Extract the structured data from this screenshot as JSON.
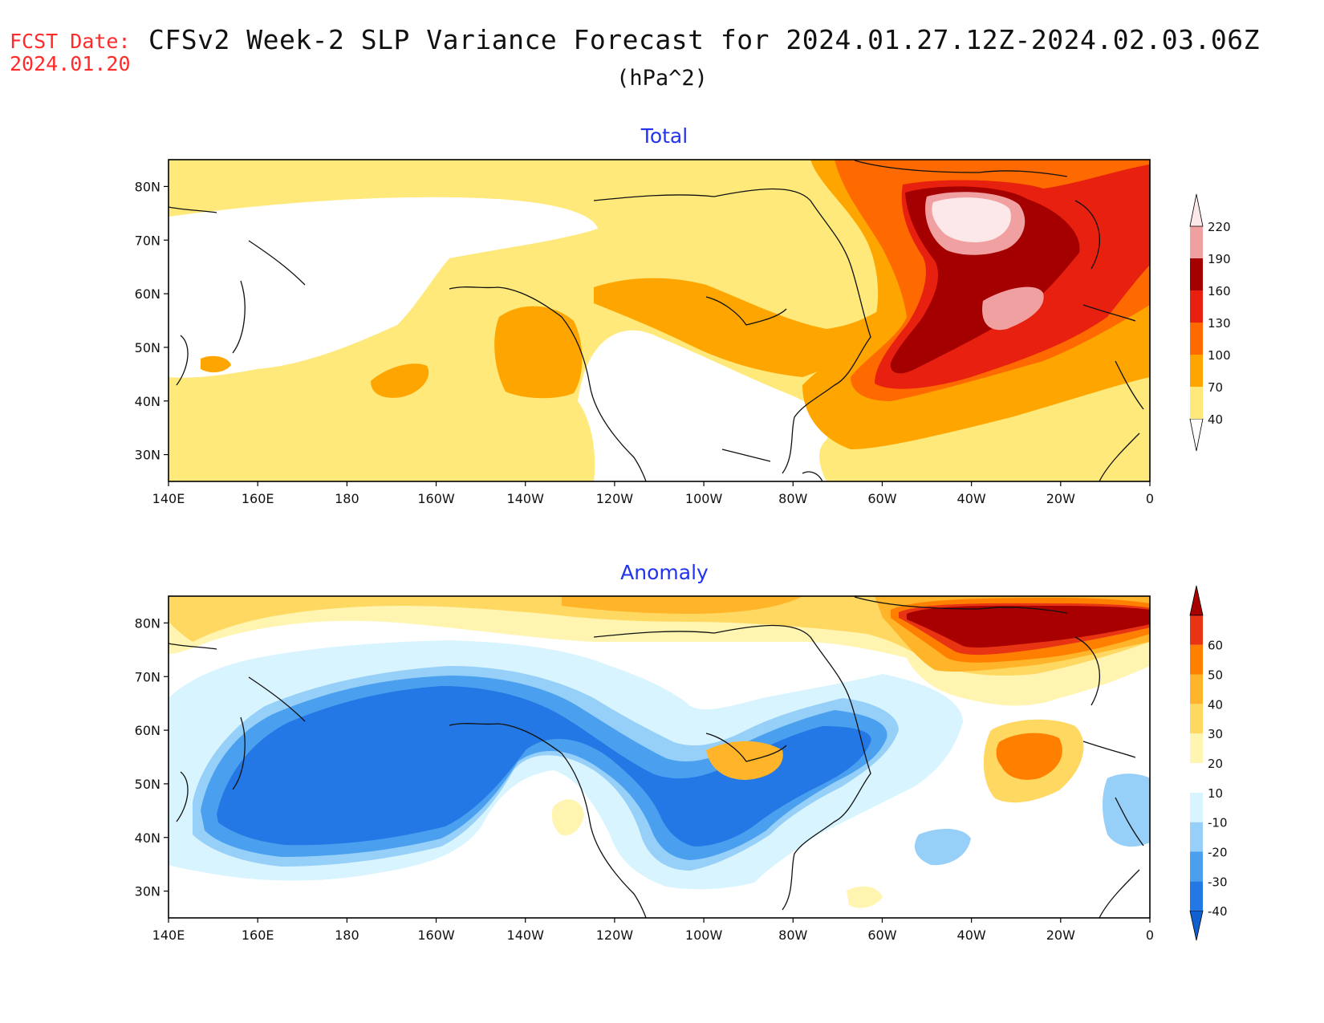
{
  "header": {
    "fcst_label": "FCST Date:",
    "fcst_date": "2024.01.20",
    "title": "CFSv2 Week-2 SLP Variance Forecast for 2024.01.27.12Z-2024.02.03.06Z",
    "units": "(hPa^2)"
  },
  "axes": {
    "lon_labels": [
      "140E",
      "160E",
      "180",
      "160W",
      "140W",
      "120W",
      "100W",
      "80W",
      "60W",
      "40W",
      "20W",
      "0"
    ],
    "lat_labels": [
      "80N",
      "70N",
      "60N",
      "50N",
      "40N",
      "30N"
    ]
  },
  "colors": {
    "total": [
      "#ffffff",
      "#ffe97a",
      "#ffa500",
      "#ff6a00",
      "#e8200f",
      "#a50000",
      "#f0a0a0",
      "#fce8e8"
    ],
    "anomaly": [
      "#1060d0",
      "#2478e6",
      "#4aa0ef",
      "#96cff8",
      "#d8f4ff",
      "#ffffff",
      "#fff5b0",
      "#ffd861",
      "#ffb429",
      "#ff7f00",
      "#e83412",
      "#a80000"
    ]
  },
  "panels": [
    {
      "id": "total",
      "title": "Total",
      "colorbar": {
        "labels": [
          "40",
          "70",
          "100",
          "130",
          "160",
          "190",
          "220"
        ]
      }
    },
    {
      "id": "anomaly",
      "title": "Anomaly",
      "colorbar": {
        "labels": [
          "-40",
          "-30",
          "-20",
          "-10",
          "10",
          "20",
          "30",
          "40",
          "50",
          "60"
        ]
      }
    }
  ]
}
